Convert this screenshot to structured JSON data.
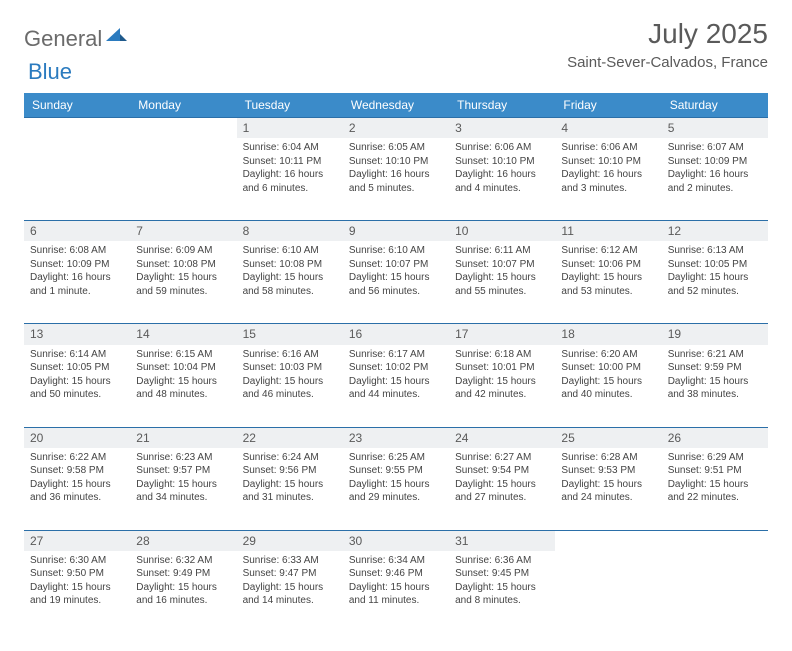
{
  "logo": {
    "general": "General",
    "blue": "Blue"
  },
  "title": "July 2025",
  "location": "Saint-Sever-Calvados, France",
  "colors": {
    "header_bg": "#3b8bc9",
    "header_text": "#ffffff",
    "day_bg": "#eef0f2",
    "border": "#2b6fa8",
    "text": "#444444",
    "logo_gray": "#6b6b6b",
    "logo_blue": "#2b7bbf"
  },
  "dayNames": [
    "Sunday",
    "Monday",
    "Tuesday",
    "Wednesday",
    "Thursday",
    "Friday",
    "Saturday"
  ],
  "weeks": [
    [
      null,
      null,
      {
        "n": "1",
        "sr": "6:04 AM",
        "ss": "10:11 PM",
        "dl": "16 hours and 6 minutes."
      },
      {
        "n": "2",
        "sr": "6:05 AM",
        "ss": "10:10 PM",
        "dl": "16 hours and 5 minutes."
      },
      {
        "n": "3",
        "sr": "6:06 AM",
        "ss": "10:10 PM",
        "dl": "16 hours and 4 minutes."
      },
      {
        "n": "4",
        "sr": "6:06 AM",
        "ss": "10:10 PM",
        "dl": "16 hours and 3 minutes."
      },
      {
        "n": "5",
        "sr": "6:07 AM",
        "ss": "10:09 PM",
        "dl": "16 hours and 2 minutes."
      }
    ],
    [
      {
        "n": "6",
        "sr": "6:08 AM",
        "ss": "10:09 PM",
        "dl": "16 hours and 1 minute."
      },
      {
        "n": "7",
        "sr": "6:09 AM",
        "ss": "10:08 PM",
        "dl": "15 hours and 59 minutes."
      },
      {
        "n": "8",
        "sr": "6:10 AM",
        "ss": "10:08 PM",
        "dl": "15 hours and 58 minutes."
      },
      {
        "n": "9",
        "sr": "6:10 AM",
        "ss": "10:07 PM",
        "dl": "15 hours and 56 minutes."
      },
      {
        "n": "10",
        "sr": "6:11 AM",
        "ss": "10:07 PM",
        "dl": "15 hours and 55 minutes."
      },
      {
        "n": "11",
        "sr": "6:12 AM",
        "ss": "10:06 PM",
        "dl": "15 hours and 53 minutes."
      },
      {
        "n": "12",
        "sr": "6:13 AM",
        "ss": "10:05 PM",
        "dl": "15 hours and 52 minutes."
      }
    ],
    [
      {
        "n": "13",
        "sr": "6:14 AM",
        "ss": "10:05 PM",
        "dl": "15 hours and 50 minutes."
      },
      {
        "n": "14",
        "sr": "6:15 AM",
        "ss": "10:04 PM",
        "dl": "15 hours and 48 minutes."
      },
      {
        "n": "15",
        "sr": "6:16 AM",
        "ss": "10:03 PM",
        "dl": "15 hours and 46 minutes."
      },
      {
        "n": "16",
        "sr": "6:17 AM",
        "ss": "10:02 PM",
        "dl": "15 hours and 44 minutes."
      },
      {
        "n": "17",
        "sr": "6:18 AM",
        "ss": "10:01 PM",
        "dl": "15 hours and 42 minutes."
      },
      {
        "n": "18",
        "sr": "6:20 AM",
        "ss": "10:00 PM",
        "dl": "15 hours and 40 minutes."
      },
      {
        "n": "19",
        "sr": "6:21 AM",
        "ss": "9:59 PM",
        "dl": "15 hours and 38 minutes."
      }
    ],
    [
      {
        "n": "20",
        "sr": "6:22 AM",
        "ss": "9:58 PM",
        "dl": "15 hours and 36 minutes."
      },
      {
        "n": "21",
        "sr": "6:23 AM",
        "ss": "9:57 PM",
        "dl": "15 hours and 34 minutes."
      },
      {
        "n": "22",
        "sr": "6:24 AM",
        "ss": "9:56 PM",
        "dl": "15 hours and 31 minutes."
      },
      {
        "n": "23",
        "sr": "6:25 AM",
        "ss": "9:55 PM",
        "dl": "15 hours and 29 minutes."
      },
      {
        "n": "24",
        "sr": "6:27 AM",
        "ss": "9:54 PM",
        "dl": "15 hours and 27 minutes."
      },
      {
        "n": "25",
        "sr": "6:28 AM",
        "ss": "9:53 PM",
        "dl": "15 hours and 24 minutes."
      },
      {
        "n": "26",
        "sr": "6:29 AM",
        "ss": "9:51 PM",
        "dl": "15 hours and 22 minutes."
      }
    ],
    [
      {
        "n": "27",
        "sr": "6:30 AM",
        "ss": "9:50 PM",
        "dl": "15 hours and 19 minutes."
      },
      {
        "n": "28",
        "sr": "6:32 AM",
        "ss": "9:49 PM",
        "dl": "15 hours and 16 minutes."
      },
      {
        "n": "29",
        "sr": "6:33 AM",
        "ss": "9:47 PM",
        "dl": "15 hours and 14 minutes."
      },
      {
        "n": "30",
        "sr": "6:34 AM",
        "ss": "9:46 PM",
        "dl": "15 hours and 11 minutes."
      },
      {
        "n": "31",
        "sr": "6:36 AM",
        "ss": "9:45 PM",
        "dl": "15 hours and 8 minutes."
      },
      null,
      null
    ]
  ],
  "labels": {
    "sunrise": "Sunrise:",
    "sunset": "Sunset:",
    "daylight": "Daylight:"
  }
}
